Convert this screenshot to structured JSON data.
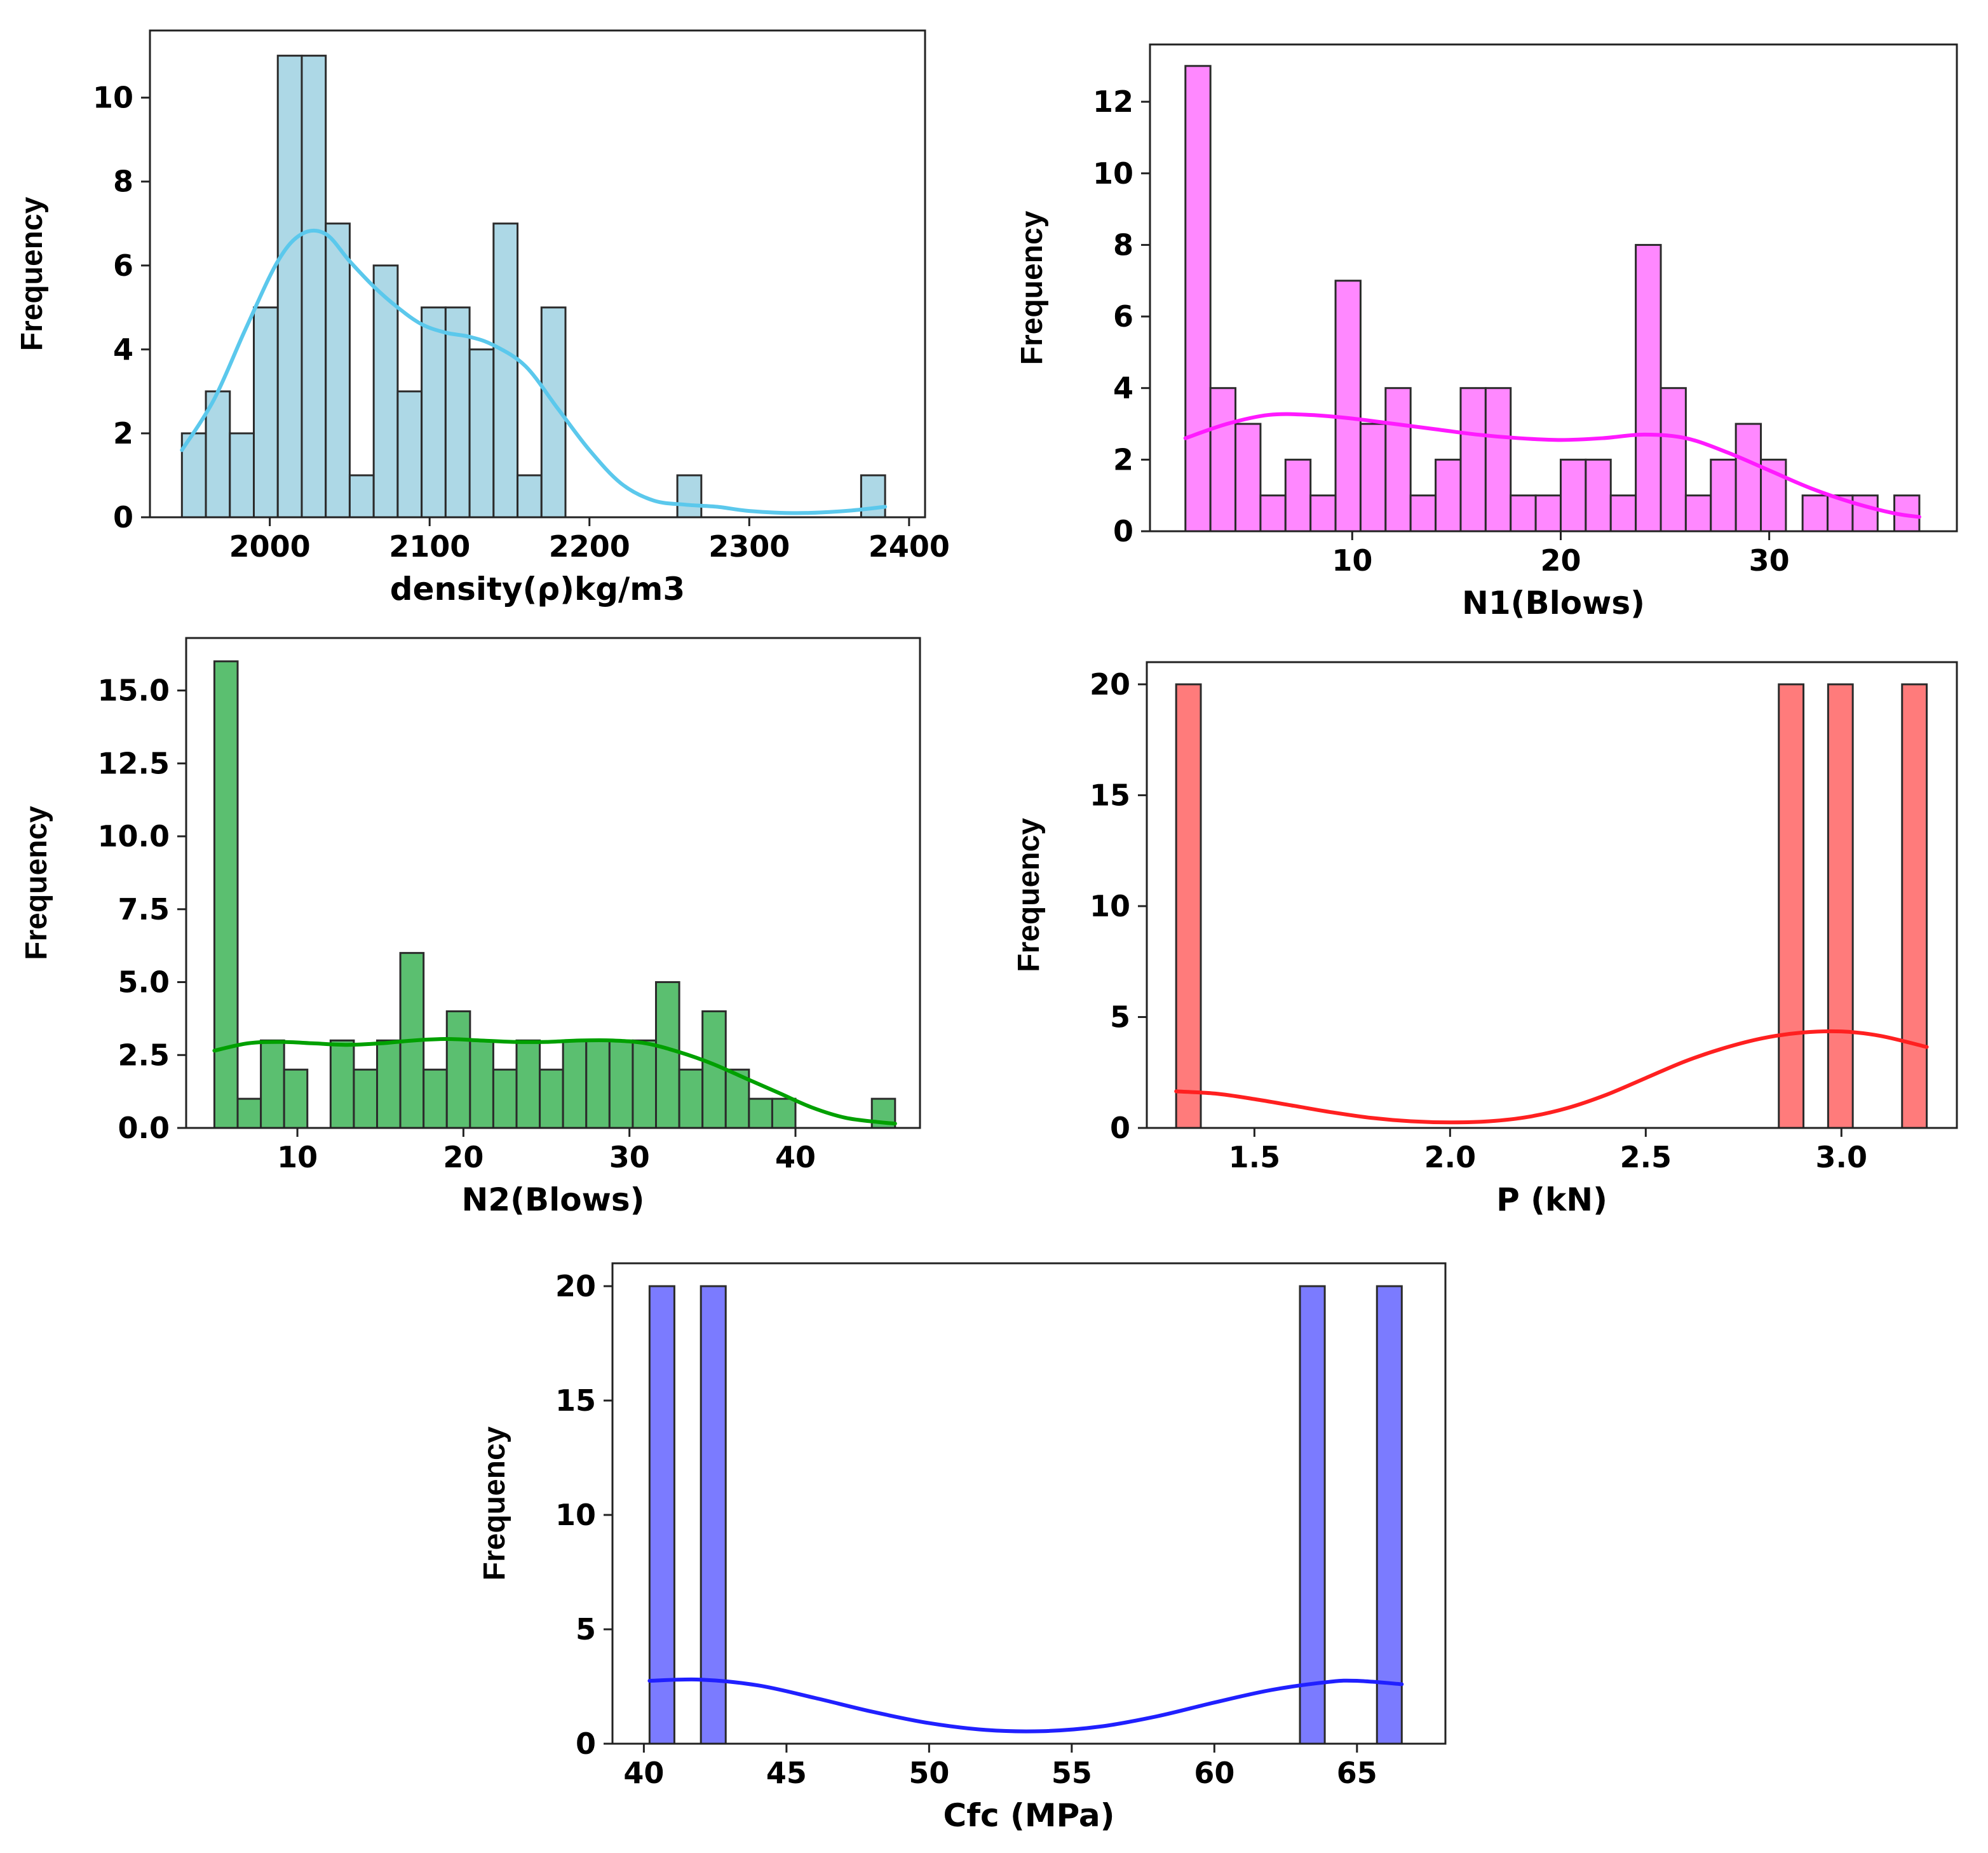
{
  "chart_data": [
    {
      "id": "density",
      "type": "bar",
      "subtype": "histogram-with-kde",
      "xlabel": "density(ρ)kg/m3",
      "ylabel": "Frequency",
      "xlim": [
        1925,
        2410
      ],
      "ylim": [
        0,
        11.6
      ],
      "xticks": [
        2000,
        2100,
        2200,
        2300,
        2400
      ],
      "yticks": [
        0,
        2,
        4,
        6,
        8,
        10
      ],
      "ytick_labels": [
        "0",
        "2",
        "4",
        "6",
        "8",
        "10"
      ],
      "bar_color": "#add8e6",
      "line_color": "#5bc8ec",
      "bins": [
        [
          1945,
          1960,
          2
        ],
        [
          1960,
          1975,
          3
        ],
        [
          1975,
          1990,
          2
        ],
        [
          1990,
          2005,
          5
        ],
        [
          2005,
          2020,
          11
        ],
        [
          2020,
          2035,
          11
        ],
        [
          2035,
          2050,
          7
        ],
        [
          2050,
          2065,
          1
        ],
        [
          2065,
          2080,
          6
        ],
        [
          2080,
          2095,
          3
        ],
        [
          2095,
          2110,
          5
        ],
        [
          2110,
          2125,
          5
        ],
        [
          2125,
          2140,
          4
        ],
        [
          2140,
          2155,
          7
        ],
        [
          2155,
          2170,
          1
        ],
        [
          2170,
          2185,
          5
        ],
        [
          2255,
          2270,
          1
        ],
        [
          2370,
          2385,
          1
        ]
      ],
      "kde": [
        [
          1945,
          1.6
        ],
        [
          1965,
          2.8
        ],
        [
          1985,
          4.5
        ],
        [
          2005,
          6.1
        ],
        [
          2020,
          6.75
        ],
        [
          2035,
          6.75
        ],
        [
          2050,
          6.1
        ],
        [
          2065,
          5.5
        ],
        [
          2080,
          5.0
        ],
        [
          2095,
          4.6
        ],
        [
          2110,
          4.4
        ],
        [
          2125,
          4.3
        ],
        [
          2140,
          4.1
        ],
        [
          2160,
          3.6
        ],
        [
          2180,
          2.6
        ],
        [
          2200,
          1.6
        ],
        [
          2220,
          0.8
        ],
        [
          2240,
          0.4
        ],
        [
          2260,
          0.3
        ],
        [
          2280,
          0.25
        ],
        [
          2300,
          0.15
        ],
        [
          2330,
          0.1
        ],
        [
          2360,
          0.15
        ],
        [
          2385,
          0.25
        ]
      ]
    },
    {
      "id": "n1",
      "type": "bar",
      "subtype": "histogram-with-kde",
      "xlabel": "N1(Blows)",
      "ylabel": "Frequency",
      "xlim": [
        0.3,
        39.0
      ],
      "ylim": [
        0,
        13.6
      ],
      "xticks": [
        10,
        20,
        30
      ],
      "yticks": [
        0,
        2,
        4,
        6,
        8,
        10,
        12
      ],
      "ytick_labels": [
        "0",
        "2",
        "4",
        "6",
        "8",
        "10",
        "12"
      ],
      "bar_color": "#ff88ff",
      "line_color": "#ff1aff",
      "bins": [
        [
          2.0,
          3.2,
          13
        ],
        [
          3.2,
          4.4,
          4
        ],
        [
          4.4,
          5.6,
          3
        ],
        [
          5.6,
          6.8,
          1
        ],
        [
          6.8,
          8.0,
          2
        ],
        [
          8.0,
          9.2,
          1
        ],
        [
          9.2,
          10.4,
          7
        ],
        [
          10.4,
          11.6,
          3
        ],
        [
          11.6,
          12.8,
          4
        ],
        [
          12.8,
          14.0,
          1
        ],
        [
          14.0,
          15.2,
          2
        ],
        [
          15.2,
          16.4,
          4
        ],
        [
          16.4,
          17.6,
          4
        ],
        [
          17.6,
          18.8,
          1
        ],
        [
          18.8,
          20.0,
          1
        ],
        [
          20.0,
          21.2,
          2
        ],
        [
          21.2,
          22.4,
          2
        ],
        [
          22.4,
          23.6,
          1
        ],
        [
          23.6,
          24.8,
          8
        ],
        [
          24.8,
          26.0,
          4
        ],
        [
          26.0,
          27.2,
          1
        ],
        [
          27.2,
          28.4,
          2
        ],
        [
          28.4,
          29.6,
          3
        ],
        [
          29.6,
          30.8,
          2
        ],
        [
          31.6,
          32.8,
          1
        ],
        [
          32.8,
          34.0,
          1
        ],
        [
          34.0,
          35.2,
          1
        ],
        [
          36.0,
          37.2,
          1
        ]
      ],
      "kde": [
        [
          2,
          2.6
        ],
        [
          4,
          3.0
        ],
        [
          6,
          3.25
        ],
        [
          8,
          3.25
        ],
        [
          10,
          3.15
        ],
        [
          12,
          3.0
        ],
        [
          14,
          2.85
        ],
        [
          16,
          2.7
        ],
        [
          18,
          2.6
        ],
        [
          20,
          2.55
        ],
        [
          22,
          2.6
        ],
        [
          24,
          2.7
        ],
        [
          26,
          2.6
        ],
        [
          28,
          2.2
        ],
        [
          30,
          1.7
        ],
        [
          32,
          1.2
        ],
        [
          34,
          0.8
        ],
        [
          36,
          0.5
        ],
        [
          37.2,
          0.4
        ]
      ]
    },
    {
      "id": "n2",
      "type": "bar",
      "subtype": "histogram-with-kde",
      "xlabel": "N2(Blows)",
      "ylabel": "Frequency",
      "xlim": [
        3.3,
        47.5
      ],
      "ylim": [
        0,
        16.8
      ],
      "xticks": [
        10,
        20,
        30,
        40
      ],
      "yticks": [
        0,
        2.5,
        5,
        7.5,
        10,
        12.5,
        15
      ],
      "ytick_labels": [
        "0.0",
        "2.5",
        "5.0",
        "7.5",
        "10.0",
        "12.5",
        "15.0"
      ],
      "bar_color": "#5bbf70",
      "line_color": "#00a000",
      "bins": [
        [
          5.0,
          6.4,
          16
        ],
        [
          6.4,
          7.8,
          1
        ],
        [
          7.8,
          9.2,
          3
        ],
        [
          9.2,
          10.6,
          2
        ],
        [
          12.0,
          13.4,
          3
        ],
        [
          13.4,
          14.8,
          2
        ],
        [
          14.8,
          16.2,
          3
        ],
        [
          16.2,
          17.6,
          6
        ],
        [
          17.6,
          19.0,
          2
        ],
        [
          19.0,
          20.4,
          4
        ],
        [
          20.4,
          21.8,
          3
        ],
        [
          21.8,
          23.2,
          2
        ],
        [
          23.2,
          24.6,
          3
        ],
        [
          24.6,
          26.0,
          2
        ],
        [
          26.0,
          27.4,
          3
        ],
        [
          27.4,
          28.8,
          3
        ],
        [
          28.8,
          30.2,
          3
        ],
        [
          30.2,
          31.6,
          3
        ],
        [
          31.6,
          33.0,
          5
        ],
        [
          33.0,
          34.4,
          2
        ],
        [
          34.4,
          35.8,
          4
        ],
        [
          35.8,
          37.2,
          2
        ],
        [
          37.2,
          38.6,
          1
        ],
        [
          38.6,
          40.0,
          1
        ],
        [
          44.6,
          46.0,
          1
        ]
      ],
      "kde": [
        [
          5,
          2.65
        ],
        [
          7,
          2.9
        ],
        [
          9,
          2.95
        ],
        [
          11,
          2.9
        ],
        [
          13,
          2.85
        ],
        [
          15,
          2.9
        ],
        [
          17,
          3.0
        ],
        [
          19,
          3.05
        ],
        [
          21,
          3.0
        ],
        [
          23,
          2.95
        ],
        [
          25,
          2.95
        ],
        [
          27,
          3.0
        ],
        [
          29,
          3.0
        ],
        [
          31,
          2.9
        ],
        [
          33,
          2.6
        ],
        [
          35,
          2.2
        ],
        [
          37,
          1.7
        ],
        [
          39,
          1.2
        ],
        [
          41,
          0.7
        ],
        [
          43,
          0.35
        ],
        [
          45,
          0.2
        ],
        [
          46,
          0.15
        ]
      ]
    },
    {
      "id": "p",
      "type": "bar",
      "subtype": "histogram-with-kde",
      "xlabel": "P (kN)",
      "ylabel": "Frequency",
      "xlim": [
        1.225,
        3.295
      ],
      "ylim": [
        0,
        21
      ],
      "xticks": [
        1.5,
        2.0,
        2.5,
        3.0
      ],
      "xtick_labels": [
        "1.5",
        "2.0",
        "2.5",
        "3.0"
      ],
      "yticks": [
        0,
        5,
        10,
        15,
        20
      ],
      "ytick_labels": [
        "0",
        "5",
        "10",
        "15",
        "20"
      ],
      "bar_color": "#ff7b7b",
      "line_color": "#ff2020",
      "bins": [
        [
          1.3,
          1.363,
          20
        ],
        [
          2.84,
          2.903,
          20
        ],
        [
          2.966,
          3.029,
          20
        ],
        [
          3.155,
          3.218,
          20
        ]
      ],
      "kde": [
        [
          1.3,
          1.65
        ],
        [
          1.4,
          1.55
        ],
        [
          1.5,
          1.3
        ],
        [
          1.6,
          1.0
        ],
        [
          1.7,
          0.7
        ],
        [
          1.8,
          0.45
        ],
        [
          1.9,
          0.3
        ],
        [
          2.0,
          0.25
        ],
        [
          2.1,
          0.3
        ],
        [
          2.2,
          0.5
        ],
        [
          2.3,
          0.9
        ],
        [
          2.4,
          1.5
        ],
        [
          2.5,
          2.25
        ],
        [
          2.6,
          3.0
        ],
        [
          2.7,
          3.6
        ],
        [
          2.8,
          4.05
        ],
        [
          2.9,
          4.3
        ],
        [
          3.0,
          4.35
        ],
        [
          3.1,
          4.15
        ],
        [
          3.218,
          3.65
        ]
      ]
    },
    {
      "id": "cfc",
      "type": "bar",
      "subtype": "histogram-with-kde",
      "xlabel": "Cfc (MPa)",
      "ylabel": "Frequency",
      "xlim": [
        38.9,
        68.1
      ],
      "ylim": [
        0,
        21
      ],
      "xticks": [
        40,
        45,
        50,
        55,
        60,
        65
      ],
      "yticks": [
        0,
        5,
        10,
        15,
        20
      ],
      "ytick_labels": [
        "0",
        "5",
        "10",
        "15",
        "20"
      ],
      "bar_color": "#7b7bff",
      "line_color": "#2020ff",
      "bins": [
        [
          40.2,
          41.07,
          20
        ],
        [
          42.0,
          42.87,
          20
        ],
        [
          63.0,
          63.87,
          20
        ],
        [
          65.7,
          66.57,
          20
        ]
      ],
      "kde": [
        [
          40.2,
          2.75
        ],
        [
          42,
          2.8
        ],
        [
          44,
          2.55
        ],
        [
          46,
          2.0
        ],
        [
          48,
          1.4
        ],
        [
          50,
          0.9
        ],
        [
          52,
          0.6
        ],
        [
          54,
          0.55
        ],
        [
          56,
          0.75
        ],
        [
          58,
          1.2
        ],
        [
          60,
          1.8
        ],
        [
          62,
          2.35
        ],
        [
          64,
          2.7
        ],
        [
          65,
          2.75
        ],
        [
          66.57,
          2.6
        ]
      ]
    }
  ]
}
